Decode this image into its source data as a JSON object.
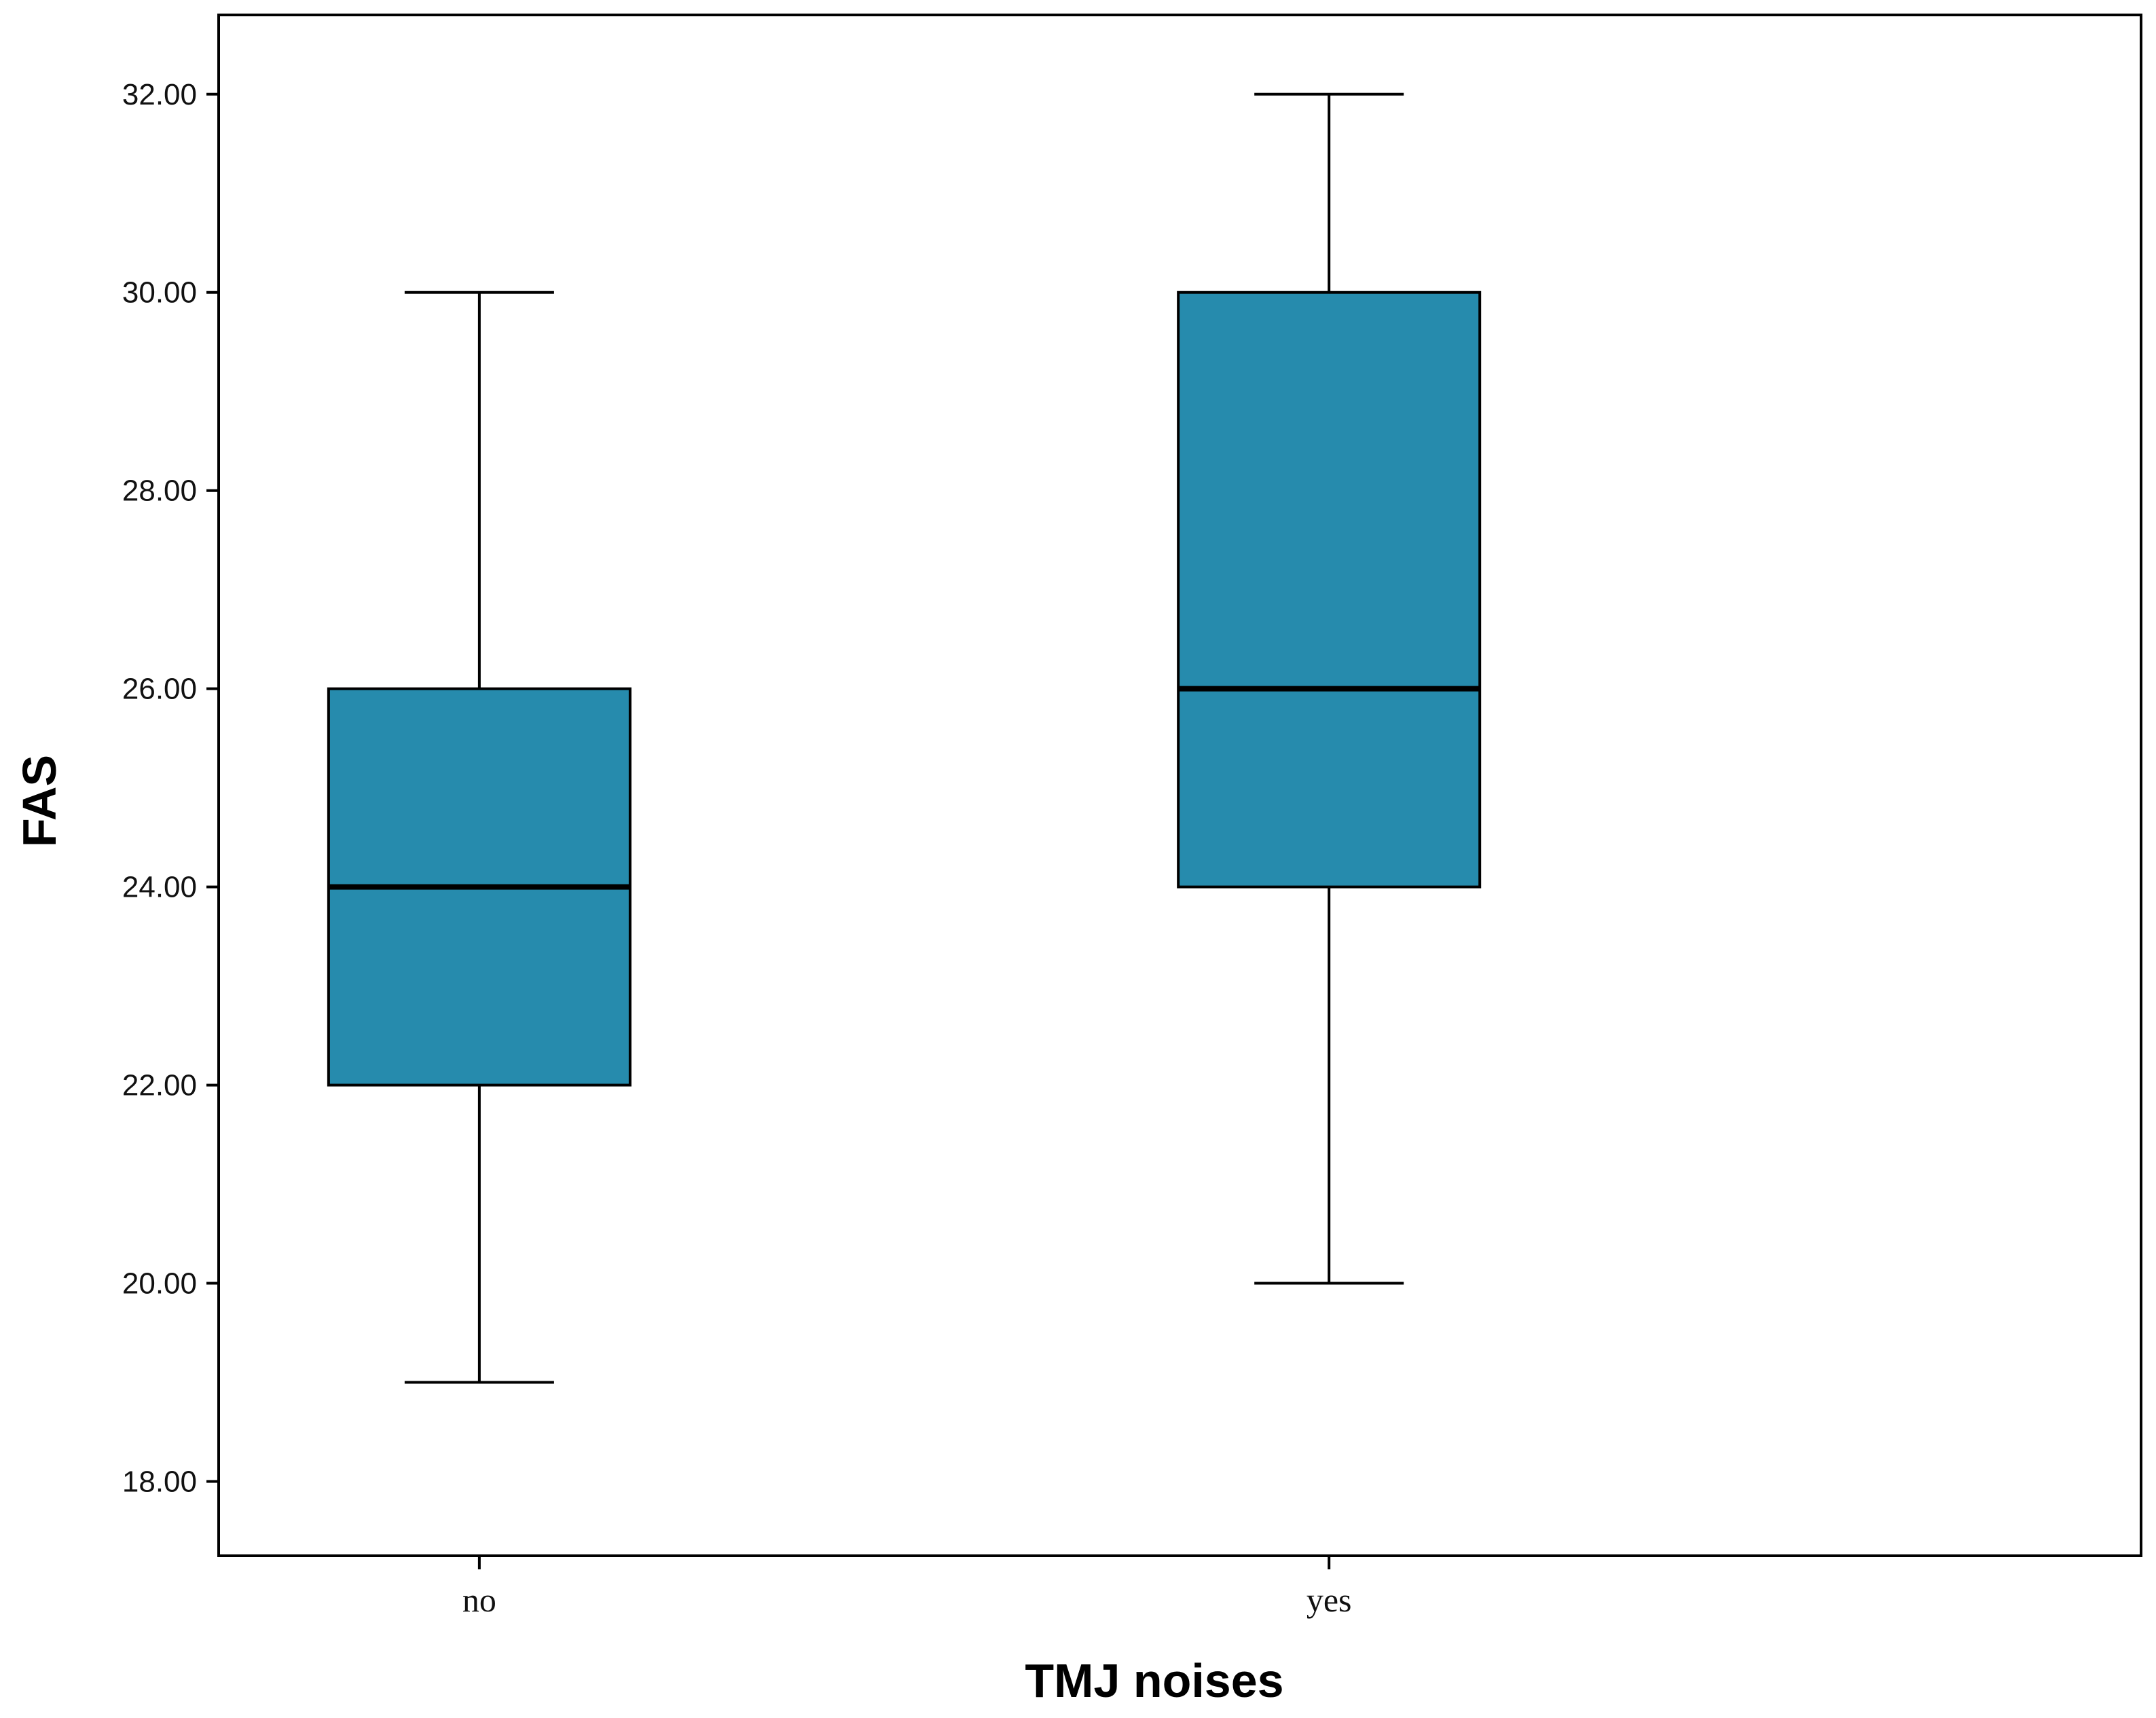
{
  "chart_data": {
    "type": "boxplot",
    "xlabel": "TMJ noises",
    "ylabel": "FAS",
    "ylim": [
      17.25,
      32.8
    ],
    "yticks": [
      18,
      20,
      22,
      24,
      26,
      28,
      30,
      32
    ],
    "ytick_labels": [
      "18.00",
      "20.00",
      "22.00",
      "24.00",
      "26.00",
      "28.00",
      "30.00",
      "32.00"
    ],
    "categories": [
      "no",
      "yes"
    ],
    "boxes": [
      {
        "category": "no",
        "min": 19,
        "q1": 22,
        "median": 24,
        "q3": 26,
        "max": 30
      },
      {
        "category": "yes",
        "min": 20,
        "q1": 24,
        "median": 26,
        "q3": 30,
        "max": 32
      }
    ],
    "box_color": "#268BAD",
    "grid": false,
    "legend": "none"
  }
}
